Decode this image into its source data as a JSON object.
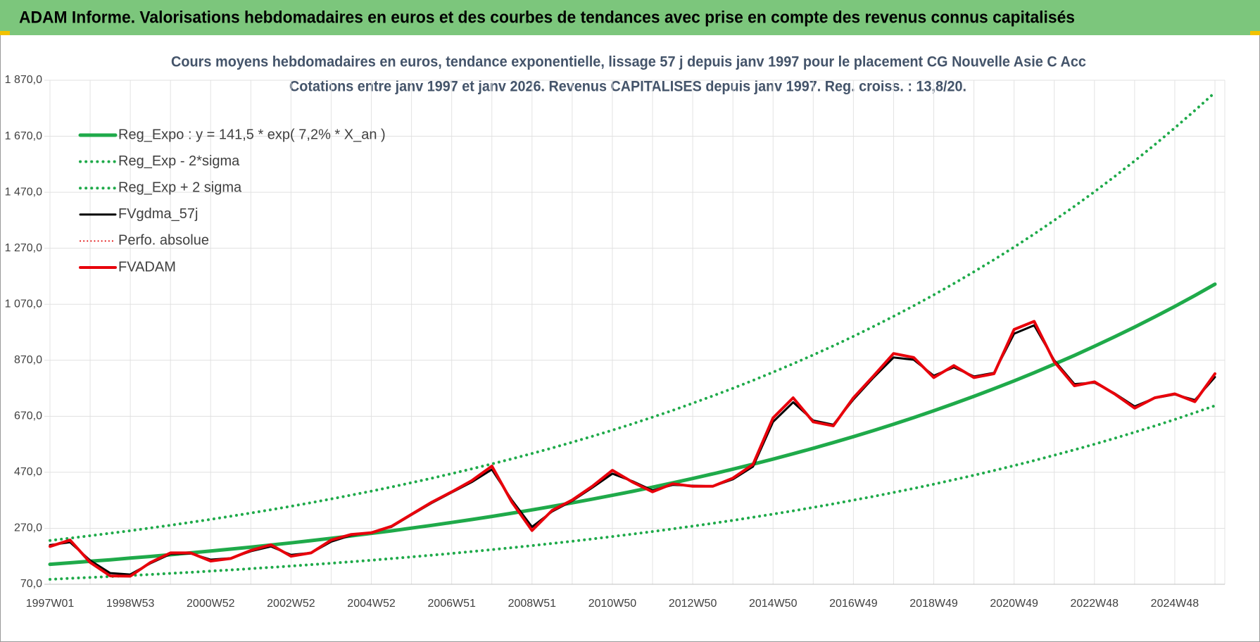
{
  "banner": "ADAM Informe. Valorisations hebdomadaires en euros et des courbes de tendances avec prise en compte des revenus connus capitalisés",
  "chart_data": {
    "type": "line",
    "title": "Cours moyens hebdomadaires en euros, tendance exponentielle, lissage 57 j depuis janv 1997 pour le placement CG Nouvelle Asie C Acc",
    "subtitle": "Cotations entre janv 1997 et janv 2026. Revenus CAPITALISES depuis janv 1997. Reg. croiss. : 13,8/20.",
    "categories": [
      "1997W01",
      null,
      null,
      null,
      "1998W53",
      null,
      null,
      null,
      "2000W52",
      null,
      null,
      null,
      "2002W52",
      null,
      null,
      null,
      "2004W52",
      null,
      null,
      null,
      "2006W51",
      null,
      null,
      null,
      "2008W51",
      null,
      null,
      null,
      "2010W50",
      null,
      null,
      null,
      "2012W50",
      null,
      null,
      null,
      "2014W50",
      null,
      null,
      null,
      "2016W49",
      null,
      null,
      null,
      "2018W49",
      null,
      null,
      null,
      "2020W49",
      null,
      null,
      null,
      "2022W48",
      null,
      null,
      null,
      "2024W48",
      null,
      null
    ],
    "ylim": [
      70,
      1870
    ],
    "yticks": [
      {
        "value": 70,
        "label": "70,0"
      },
      {
        "value": 270,
        "label": "270,0"
      },
      {
        "value": 470,
        "label": "470,0"
      },
      {
        "value": 670,
        "label": "670,0"
      },
      {
        "value": 870,
        "label": "870,0"
      },
      {
        "value": 1070,
        "label": "1 070,0"
      },
      {
        "value": 1270,
        "label": "1 270,0"
      },
      {
        "value": 1470,
        "label": "1 470,0"
      },
      {
        "value": 1670,
        "label": "1 670,0"
      },
      {
        "value": 1870,
        "label": "1 870,0"
      }
    ],
    "grid": true,
    "legend": "upper left",
    "series": [
      {
        "name": "Reg_Expo : y = 141,5 * exp( 7,2% *  X_an )",
        "color": "#1faa4a",
        "style": "solid",
        "width": 5,
        "values": [
          141.5,
          146.7,
          152.1,
          157.6,
          163.4,
          169.4,
          175.6,
          182.0,
          188.7,
          195.6,
          202.8,
          210.2,
          217.9,
          225.9,
          234.2,
          242.8,
          251.7,
          260.9,
          270.5,
          280.4,
          290.7,
          301.4,
          312.4,
          323.8,
          335.7,
          348.0,
          360.8,
          374.0,
          387.7,
          401.9,
          416.7,
          431.9,
          447.8,
          464.2,
          481.2,
          498.8,
          517.1,
          536.0,
          555.7,
          576.0,
          597.2,
          619.1,
          641.8,
          665.3,
          689.7,
          715.0,
          741.2,
          768.3,
          796.4,
          825.6,
          856.0,
          887.4,
          919.9,
          953.6,
          988.6,
          1024.8,
          1062.3,
          1101.3,
          1141.6
        ]
      },
      {
        "name": "Reg_Exp - 2*sigma",
        "color": "#1faa4a",
        "style": "dotted",
        "width": 4,
        "values": [
          87.7,
          91.0,
          94.3,
          97.7,
          101.3,
          105.0,
          108.9,
          112.8,
          117.0,
          121.3,
          125.7,
          130.3,
          135.1,
          140.1,
          145.2,
          150.5,
          156.1,
          161.8,
          167.7,
          173.8,
          180.2,
          186.9,
          193.7,
          200.8,
          208.1,
          215.8,
          223.7,
          231.9,
          240.4,
          249.2,
          258.4,
          267.8,
          277.6,
          287.8,
          298.3,
          309.3,
          320.6,
          332.3,
          344.5,
          357.1,
          370.3,
          383.8,
          397.9,
          412.5,
          427.6,
          443.3,
          459.5,
          476.3,
          493.8,
          511.9,
          530.7,
          550.2,
          570.3,
          591.2,
          612.9,
          635.4,
          658.6,
          682.8,
          707.8
        ]
      },
      {
        "name": "Reg_Exp + 2 sigma",
        "color": "#1faa4a",
        "style": "dotted",
        "width": 4,
        "values": [
          226.4,
          234.7,
          243.4,
          252.2,
          261.4,
          271.0,
          281.0,
          291.2,
          301.9,
          313.0,
          324.5,
          336.3,
          348.6,
          361.4,
          374.7,
          388.5,
          402.7,
          417.4,
          432.8,
          448.6,
          465.1,
          482.2,
          499.8,
          518.1,
          537.1,
          556.8,
          577.3,
          598.4,
          620.3,
          643.0,
          666.7,
          691.0,
          716.5,
          742.7,
          769.9,
          798.1,
          827.4,
          857.6,
          889.1,
          921.6,
          955.5,
          990.6,
          1026.9,
          1064.5,
          1103.5,
          1144.0,
          1185.9,
          1229.3,
          1274.2,
          1321.0,
          1369.6,
          1419.8,
          1471.8,
          1525.8,
          1581.8,
          1639.7,
          1699.7,
          1762.1,
          1826.6
        ]
      },
      {
        "name": "FVgdma_57j",
        "color": "#000000",
        "style": "solid",
        "width": 3,
        "values": [
          210,
          220,
          155,
          110,
          105,
          145,
          178,
          180,
          158,
          163,
          188,
          205,
          175,
          182,
          222,
          245,
          255,
          275,
          318,
          360,
          398,
          435,
          480,
          370,
          275,
          330,
          368,
          415,
          465,
          438,
          405,
          425,
          422,
          420,
          445,
          490,
          650,
          720,
          655,
          640,
          730,
          808,
          880,
          872,
          815,
          845,
          812,
          825,
          965,
          995,
          870,
          785,
          790,
          752,
          705,
          735,
          748,
          728,
          810
        ]
      },
      {
        "name": "Perfo. absolue",
        "color": "#e00000",
        "style": "dotted",
        "width": 2,
        "values": [
          205,
          228,
          148,
          100,
          99,
          148,
          182,
          182,
          153,
          162,
          191,
          211,
          170,
          182,
          228,
          248,
          254,
          277,
          320,
          363,
          400,
          440,
          492,
          363,
          262,
          334,
          371,
          420,
          477,
          435,
          400,
          429,
          420,
          420,
          449,
          498,
          664,
          736,
          650,
          636,
          736,
          814,
          894,
          880,
          808,
          851,
          808,
          822,
          980,
          1009,
          865,
          779,
          793,
          750,
          699,
          736,
          750,
          722,
          822
        ]
      },
      {
        "name": "FVADAM",
        "color": "#e8000b",
        "style": "solid",
        "width": 4,
        "values": [
          205,
          228,
          148,
          100,
          99,
          148,
          182,
          182,
          153,
          162,
          191,
          211,
          170,
          182,
          228,
          248,
          254,
          277,
          320,
          363,
          400,
          440,
          492,
          363,
          262,
          334,
          371,
          420,
          477,
          435,
          400,
          429,
          420,
          420,
          449,
          498,
          664,
          736,
          650,
          636,
          736,
          814,
          894,
          880,
          808,
          851,
          808,
          822,
          980,
          1009,
          865,
          779,
          793,
          750,
          699,
          736,
          750,
          722,
          822
        ]
      }
    ]
  }
}
